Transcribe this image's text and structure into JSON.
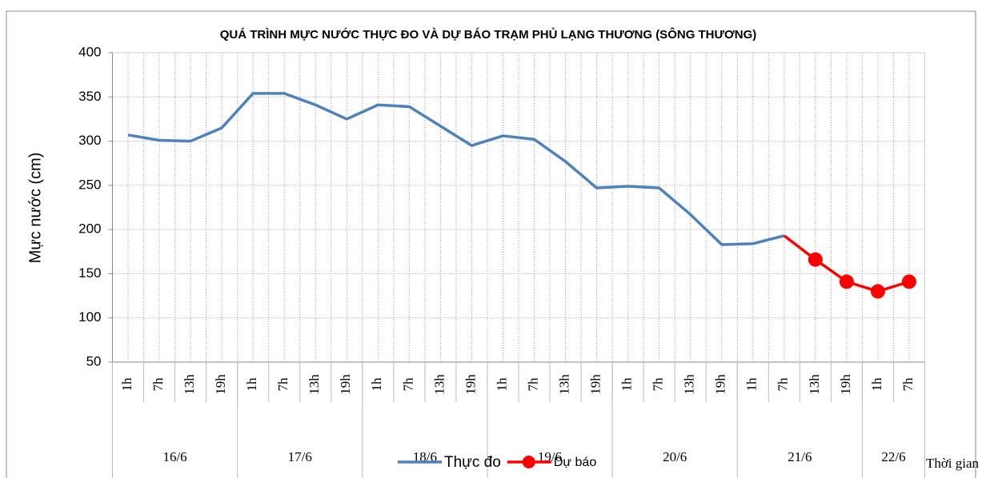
{
  "chart_data": {
    "type": "line",
    "title": "QUÁ TRÌNH MỰC NƯỚC THỰC ĐO VÀ DỰ BÁO TRẠM PHỦ LẠNG THƯƠNG (SÔNG THƯƠNG)",
    "y_label": "Mực nước (cm)",
    "x_label": "Thời gian",
    "categories": [
      "1h",
      "7h",
      "13h",
      "19h",
      "1h",
      "7h",
      "13h",
      "19h",
      "1h",
      "7h",
      "13h",
      "19h",
      "1h",
      "7h",
      "13h",
      "19h",
      "1h",
      "7h",
      "13h",
      "19h",
      "1h",
      "7h",
      "13h",
      "19h",
      "1h",
      "7h"
    ],
    "category_groups": [
      {
        "label": "16/6",
        "count": 4
      },
      {
        "label": "17/6",
        "count": 4
      },
      {
        "label": "18/6",
        "count": 4
      },
      {
        "label": "19/6",
        "count": 4
      },
      {
        "label": "20/6",
        "count": 4
      },
      {
        "label": "21/6",
        "count": 4
      },
      {
        "label": "22/6",
        "count": 2
      }
    ],
    "series": [
      {
        "name": "Thực đo",
        "color": "#4f81bd",
        "marker": false,
        "values": [
          307,
          301,
          300,
          315,
          354,
          354,
          341,
          325,
          341,
          339,
          317,
          295,
          306,
          302,
          277,
          247,
          249,
          247,
          217,
          183,
          184,
          193,
          null,
          null,
          null,
          null
        ]
      },
      {
        "name": "Dự báo",
        "color": "#ff0000",
        "marker": true,
        "values": [
          null,
          null,
          null,
          null,
          null,
          null,
          null,
          null,
          null,
          null,
          null,
          null,
          null,
          null,
          null,
          null,
          null,
          null,
          null,
          null,
          null,
          193,
          166,
          141,
          130,
          141
        ]
      }
    ],
    "ylim": [
      50,
      400
    ],
    "yticks": [
      50,
      100,
      150,
      200,
      250,
      300,
      350,
      400
    ],
    "grid": true
  }
}
